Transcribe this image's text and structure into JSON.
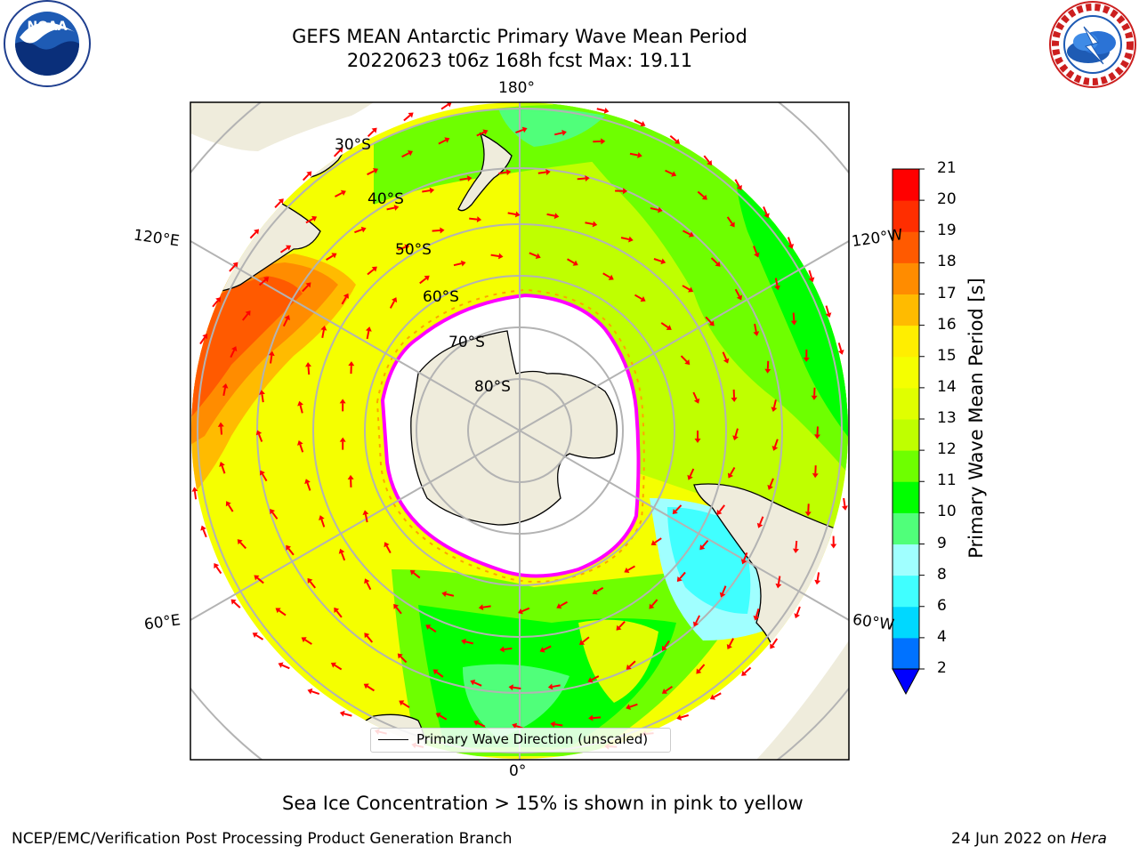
{
  "header": {
    "title_line1": "GEFS MEAN Antarctic Primary Wave Mean Period",
    "title_line2": "20220623 t06z 168h fcst   Max: 19.11"
  },
  "logos": {
    "left": {
      "name": "NOAA",
      "ring_text": "NATIONAL OCEANIC AND ATMOSPHERIC ADMINISTRATION · U.S. DEPARTMENT OF COMMERCE"
    },
    "right": {
      "name": "NATIONAL WEATHER SERVICE"
    }
  },
  "map": {
    "longitude_labels": {
      "top": "180°",
      "bottom": "0°",
      "upper_left": "120°E",
      "upper_right": "120°W",
      "lower_left": "60°E",
      "lower_right": "60°W"
    },
    "latitude_labels": [
      "30°S",
      "40°S",
      "50°S",
      "60°S",
      "70°S",
      "80°S"
    ],
    "legend_text": "Primary Wave Direction (unscaled)",
    "arrow_color": "#ff0000",
    "ice_colors": [
      "#ff00ff",
      "#ffa500",
      "#ffff00"
    ],
    "land_color": "#efecdc"
  },
  "colorbar": {
    "label": "Primary Wave Mean Period [s]",
    "ticks": [
      "2",
      "4",
      "6",
      "8",
      "9",
      "10",
      "11",
      "12",
      "13",
      "14",
      "15",
      "16",
      "17",
      "18",
      "19",
      "20",
      "21"
    ],
    "colors": [
      "#0072ff",
      "#00d8ff",
      "#40ffff",
      "#a0ffff",
      "#50ff7a",
      "#00ff00",
      "#6eff00",
      "#bfff00",
      "#e0ff00",
      "#f5ff00",
      "#ffee00",
      "#ffbb00",
      "#ff8c00",
      "#ff5a00",
      "#ff2e00",
      "#ff0000"
    ],
    "extend_color": "#0000ff"
  },
  "caption": "Sea Ice Concentration > 15% is shown in pink to yellow",
  "footer": {
    "left": "NCEP/EMC/Verification Post Processing Product Generation Branch",
    "right_date": "24 Jun 2022 on",
    "right_machine": "Hera"
  }
}
